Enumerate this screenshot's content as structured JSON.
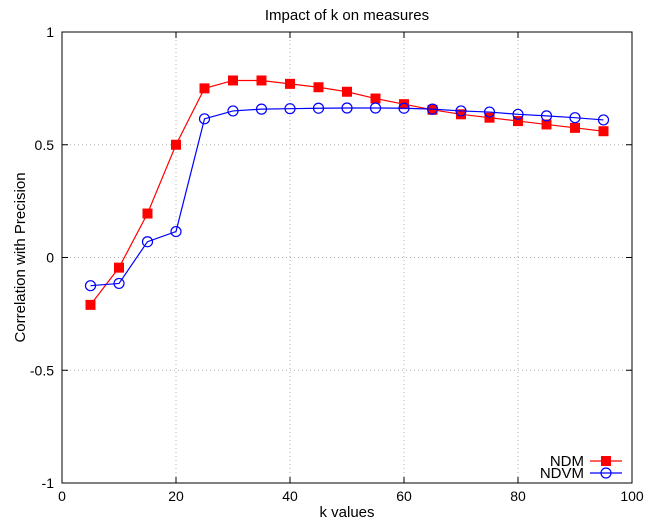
{
  "chart_data": {
    "type": "line",
    "title": "Impact of k on measures",
    "xlabel": "k values",
    "ylabel": "Correlation with Precision",
    "xlim": [
      0,
      100
    ],
    "ylim": [
      -1,
      1
    ],
    "xticks": [
      0,
      20,
      40,
      60,
      80,
      100
    ],
    "yticks": [
      -1,
      -0.5,
      0,
      0.5,
      1
    ],
    "xtick_labels": [
      "0",
      "20",
      "40",
      "60",
      "80",
      "100"
    ],
    "ytick_labels": [
      "-1",
      "-0.5",
      "0",
      "0.5",
      "1"
    ],
    "grid": true,
    "legend_position": "bottom-right",
    "x": [
      5,
      10,
      15,
      20,
      25,
      30,
      35,
      40,
      45,
      50,
      55,
      60,
      65,
      70,
      75,
      80,
      85,
      90,
      95
    ],
    "series": [
      {
        "name": "NDM",
        "color": "#ff0000",
        "marker": "filled-square",
        "values": [
          -0.21,
          -0.045,
          0.195,
          0.5,
          0.75,
          0.785,
          0.785,
          0.77,
          0.755,
          0.735,
          0.705,
          0.68,
          0.655,
          0.635,
          0.62,
          0.605,
          0.59,
          0.575,
          0.56
        ]
      },
      {
        "name": "NDVM",
        "color": "#0000ff",
        "marker": "open-circle",
        "values": [
          -0.125,
          -0.115,
          0.07,
          0.115,
          0.615,
          0.65,
          0.658,
          0.66,
          0.662,
          0.663,
          0.663,
          0.662,
          0.658,
          0.65,
          0.645,
          0.635,
          0.628,
          0.62,
          0.61
        ]
      }
    ]
  }
}
